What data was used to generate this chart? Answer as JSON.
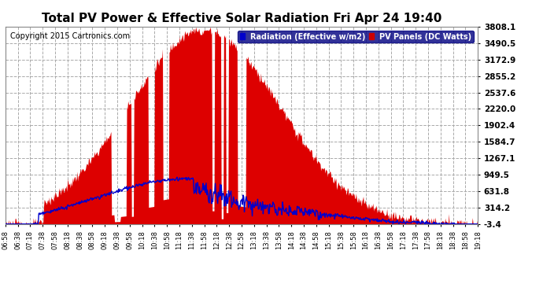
{
  "title": "Total PV Power & Effective Solar Radiation Fri Apr 24 19:40",
  "title_color": "#000000",
  "copyright": "Copyright 2015 Cartronics.com",
  "legend_radiation": "Radiation (Effective w/m2)",
  "legend_pv": "PV Panels (DC Watts)",
  "legend_radiation_bg": "#0000cc",
  "legend_pv_bg": "#cc0000",
  "bg_color": "#ffffff",
  "plot_bg": "#ffffff",
  "pv_color": "#dd0000",
  "radiation_color": "#0000cc",
  "ylim_min": -3.4,
  "ylim_max": 3808.1,
  "ytick_values": [
    -3.4,
    314.2,
    631.8,
    949.5,
    1267.1,
    1584.7,
    1902.4,
    2220.0,
    2537.6,
    2855.2,
    3172.9,
    3490.5,
    3808.1
  ],
  "xtick_labels": [
    "06:58",
    "06:38",
    "07:18",
    "07:38",
    "07:58",
    "08:18",
    "08:38",
    "08:58",
    "09:18",
    "09:38",
    "09:58",
    "10:18",
    "10:38",
    "10:58",
    "11:18",
    "11:38",
    "11:58",
    "12:18",
    "12:38",
    "12:58",
    "13:18",
    "13:38",
    "13:58",
    "14:18",
    "14:38",
    "14:58",
    "15:18",
    "15:38",
    "15:58",
    "16:18",
    "16:38",
    "16:58",
    "17:18",
    "17:38",
    "17:58",
    "18:18",
    "18:38",
    "18:58",
    "19:18"
  ],
  "grid_color": "#aaaaaa",
  "grid_linestyle": "--"
}
